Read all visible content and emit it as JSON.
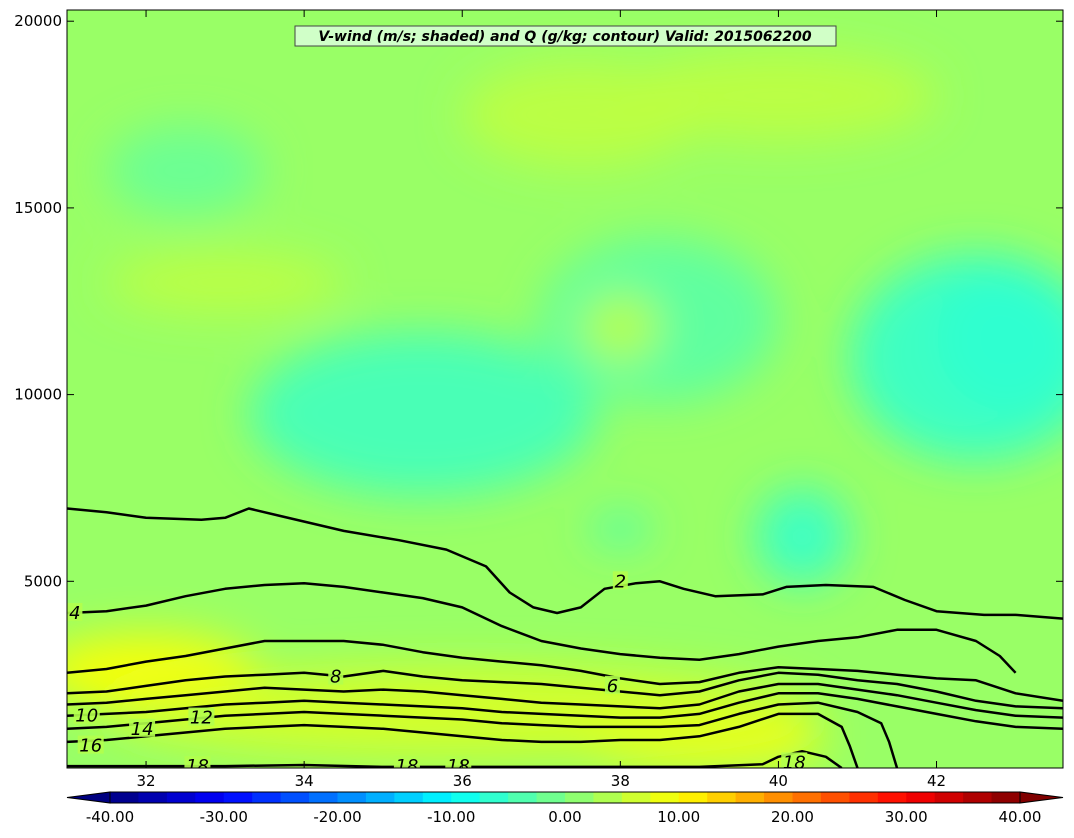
{
  "chart_data": {
    "type": "contour",
    "title": "V-wind (m/s; shaded) and Q (g/kg; contour) Valid: 2015062200",
    "xlabel": "",
    "ylabel": "",
    "xlim": [
      31.0,
      43.6
    ],
    "ylim": [
      0,
      20300
    ],
    "x_ticks": [
      32,
      34,
      36,
      38,
      40,
      42
    ],
    "y_ticks": [
      5000,
      10000,
      15000,
      20000
    ],
    "shaded_variable": "V-wind (m/s)",
    "contour_variable": "Q (g/kg)",
    "colorbar": {
      "min": -40,
      "max": 40,
      "step": 2.5,
      "tick_values": [
        -40,
        -30,
        -20,
        -10,
        0,
        10,
        20,
        30,
        40
      ],
      "tick_labels": [
        "-40.00",
        "-30.00",
        "-20.00",
        "-10.00",
        "0.00",
        "10.00",
        "20.00",
        "30.00",
        "40.00"
      ],
      "colormap": "jet",
      "extend": "both"
    },
    "shaded_field_summary": {
      "background_value": 2,
      "anomalies": [
        {
          "x": 42.9,
          "y": 11500,
          "value": -10,
          "rx": 0.9,
          "ry": 1900
        },
        {
          "x": 42.5,
          "y": 11000,
          "value": -6,
          "rx": 1.6,
          "ry": 2800
        },
        {
          "x": 35.5,
          "y": 9500,
          "value": -5,
          "rx": 2.2,
          "ry": 2200
        },
        {
          "x": 40.3,
          "y": 6200,
          "value": -6,
          "rx": 0.6,
          "ry": 1300
        },
        {
          "x": 38.0,
          "y": 6400,
          "value": -5,
          "rx": 0.4,
          "ry": 400
        },
        {
          "x": 38.5,
          "y": 12000,
          "value": -3,
          "rx": 1.5,
          "ry": 2200
        },
        {
          "x": 32.5,
          "y": 16000,
          "value": -2,
          "rx": 1.0,
          "ry": 1200
        },
        {
          "x": 33.0,
          "y": 13000,
          "value": 5,
          "rx": 1.5,
          "ry": 800
        },
        {
          "x": 38.0,
          "y": 11800,
          "value": 5,
          "rx": 0.5,
          "ry": 900
        },
        {
          "x": 37.5,
          "y": 17500,
          "value": 5,
          "rx": 1.5,
          "ry": 1400
        },
        {
          "x": 40.0,
          "y": 18000,
          "value": 5,
          "rx": 2.0,
          "ry": 1200
        },
        {
          "x": 32.0,
          "y": 2600,
          "value": 10,
          "rx": 1.4,
          "ry": 1000
        },
        {
          "x": 39.0,
          "y": 700,
          "value": 10,
          "rx": 1.6,
          "ry": 700
        },
        {
          "x": 36.0,
          "y": 1500,
          "value": 7,
          "rx": 4.5,
          "ry": 1200
        }
      ]
    },
    "contours": [
      {
        "level": 2,
        "label": "2",
        "points": [
          [
            31.0,
            6950
          ],
          [
            31.5,
            6850
          ],
          [
            32.0,
            6700
          ],
          [
            32.7,
            6650
          ],
          [
            33.0,
            6700
          ],
          [
            33.3,
            6950
          ],
          [
            33.7,
            6750
          ],
          [
            34.5,
            6350
          ],
          [
            35.2,
            6100
          ],
          [
            35.8,
            5850
          ],
          [
            36.3,
            5400
          ],
          [
            36.6,
            4700
          ],
          [
            36.9,
            4300
          ],
          [
            37.2,
            4150
          ],
          [
            37.5,
            4300
          ],
          [
            37.8,
            4800
          ],
          [
            38.2,
            4950
          ],
          [
            38.5,
            5000
          ],
          [
            38.8,
            4800
          ],
          [
            39.2,
            4600
          ],
          [
            39.8,
            4650
          ],
          [
            40.1,
            4850
          ],
          [
            40.6,
            4900
          ],
          [
            41.2,
            4850
          ],
          [
            41.6,
            4500
          ],
          [
            42.0,
            4200
          ],
          [
            42.6,
            4100
          ],
          [
            43.0,
            4100
          ],
          [
            43.6,
            4000
          ]
        ]
      },
      {
        "level": 4,
        "label": "4",
        "points": [
          [
            31.0,
            4150
          ],
          [
            31.5,
            4200
          ],
          [
            32.0,
            4350
          ],
          [
            32.5,
            4600
          ],
          [
            33.0,
            4800
          ],
          [
            33.5,
            4900
          ],
          [
            34.0,
            4950
          ],
          [
            34.5,
            4850
          ],
          [
            35.0,
            4700
          ],
          [
            35.5,
            4550
          ],
          [
            36.0,
            4300
          ],
          [
            36.5,
            3800
          ],
          [
            37.0,
            3400
          ],
          [
            37.5,
            3200
          ],
          [
            38.0,
            3050
          ],
          [
            38.5,
            2950
          ],
          [
            39.0,
            2900
          ],
          [
            39.5,
            3050
          ],
          [
            40.0,
            3250
          ],
          [
            40.5,
            3400
          ],
          [
            41.0,
            3500
          ],
          [
            41.5,
            3700
          ],
          [
            42.0,
            3700
          ],
          [
            42.5,
            3400
          ],
          [
            42.8,
            3000
          ],
          [
            43.0,
            2550
          ]
        ]
      },
      {
        "level": 6,
        "label": "6",
        "points": [
          [
            31.0,
            2550
          ],
          [
            31.5,
            2650
          ],
          [
            32.0,
            2850
          ],
          [
            32.5,
            3000
          ],
          [
            33.0,
            3200
          ],
          [
            33.5,
            3400
          ],
          [
            34.0,
            3400
          ],
          [
            34.5,
            3400
          ],
          [
            35.0,
            3300
          ],
          [
            35.5,
            3100
          ],
          [
            36.0,
            2950
          ],
          [
            36.5,
            2850
          ],
          [
            37.0,
            2750
          ],
          [
            37.5,
            2600
          ],
          [
            38.0,
            2400
          ],
          [
            38.5,
            2250
          ],
          [
            39.0,
            2300
          ],
          [
            39.5,
            2550
          ],
          [
            40.0,
            2700
          ],
          [
            40.5,
            2650
          ],
          [
            41.0,
            2600
          ],
          [
            41.5,
            2500
          ],
          [
            42.0,
            2400
          ],
          [
            42.5,
            2350
          ],
          [
            43.0,
            2000
          ],
          [
            43.6,
            1800
          ]
        ]
      },
      {
        "level": 8,
        "label": "8",
        "points": [
          [
            31.0,
            2000
          ],
          [
            31.5,
            2050
          ],
          [
            32.0,
            2200
          ],
          [
            32.5,
            2350
          ],
          [
            33.0,
            2450
          ],
          [
            33.5,
            2500
          ],
          [
            34.0,
            2550
          ],
          [
            34.5,
            2450
          ],
          [
            35.0,
            2600
          ],
          [
            35.5,
            2450
          ],
          [
            36.0,
            2350
          ],
          [
            36.5,
            2300
          ],
          [
            37.0,
            2250
          ],
          [
            37.5,
            2150
          ],
          [
            38.0,
            2050
          ],
          [
            38.5,
            1950
          ],
          [
            39.0,
            2050
          ],
          [
            39.5,
            2350
          ],
          [
            40.0,
            2550
          ],
          [
            40.5,
            2500
          ],
          [
            41.0,
            2350
          ],
          [
            41.5,
            2250
          ],
          [
            42.0,
            2050
          ],
          [
            42.5,
            1800
          ],
          [
            43.0,
            1650
          ],
          [
            43.6,
            1600
          ]
        ]
      },
      {
        "level": 10,
        "label": "10",
        "points": [
          [
            31.0,
            1700
          ],
          [
            31.5,
            1750
          ],
          [
            32.0,
            1850
          ],
          [
            32.5,
            1950
          ],
          [
            33.0,
            2050
          ],
          [
            33.5,
            2150
          ],
          [
            34.0,
            2100
          ],
          [
            34.5,
            2050
          ],
          [
            35.0,
            2100
          ],
          [
            35.5,
            2050
          ],
          [
            36.0,
            1950
          ],
          [
            36.5,
            1850
          ],
          [
            37.0,
            1750
          ],
          [
            37.5,
            1700
          ],
          [
            38.0,
            1650
          ],
          [
            38.5,
            1600
          ],
          [
            39.0,
            1700
          ],
          [
            39.5,
            2050
          ],
          [
            40.0,
            2250
          ],
          [
            40.5,
            2250
          ],
          [
            41.0,
            2100
          ],
          [
            41.5,
            1950
          ],
          [
            42.0,
            1750
          ],
          [
            42.5,
            1550
          ],
          [
            43.0,
            1400
          ],
          [
            43.6,
            1350
          ]
        ]
      },
      {
        "level": 12,
        "label": "12",
        "points": [
          [
            31.0,
            1400
          ],
          [
            31.5,
            1450
          ],
          [
            32.0,
            1500
          ],
          [
            32.5,
            1600
          ],
          [
            33.0,
            1700
          ],
          [
            33.5,
            1750
          ],
          [
            34.0,
            1800
          ],
          [
            34.5,
            1750
          ],
          [
            35.0,
            1700
          ],
          [
            35.5,
            1650
          ],
          [
            36.0,
            1600
          ],
          [
            36.5,
            1500
          ],
          [
            37.0,
            1450
          ],
          [
            37.5,
            1400
          ],
          [
            38.0,
            1350
          ],
          [
            38.5,
            1350
          ],
          [
            39.0,
            1450
          ],
          [
            39.5,
            1750
          ],
          [
            40.0,
            2000
          ],
          [
            40.5,
            2000
          ],
          [
            41.0,
            1850
          ],
          [
            41.5,
            1650
          ],
          [
            42.0,
            1450
          ],
          [
            42.5,
            1250
          ],
          [
            43.0,
            1100
          ],
          [
            43.6,
            1050
          ]
        ]
      },
      {
        "level": 14,
        "label": "14",
        "points": [
          [
            31.0,
            1050
          ],
          [
            31.5,
            1100
          ],
          [
            32.0,
            1200
          ],
          [
            32.5,
            1300
          ],
          [
            33.0,
            1400
          ],
          [
            33.5,
            1450
          ],
          [
            34.0,
            1500
          ],
          [
            34.5,
            1450
          ],
          [
            35.0,
            1400
          ],
          [
            35.5,
            1350
          ],
          [
            36.0,
            1300
          ],
          [
            36.5,
            1200
          ],
          [
            37.0,
            1150
          ],
          [
            37.5,
            1100
          ],
          [
            38.0,
            1100
          ],
          [
            38.5,
            1100
          ],
          [
            39.0,
            1150
          ],
          [
            39.5,
            1450
          ],
          [
            40.0,
            1700
          ],
          [
            40.5,
            1750
          ],
          [
            41.0,
            1500
          ],
          [
            41.3,
            1200
          ],
          [
            41.4,
            700
          ],
          [
            41.5,
            0
          ]
        ]
      },
      {
        "level": 16,
        "label": "16",
        "points": [
          [
            31.0,
            700
          ],
          [
            31.5,
            750
          ],
          [
            32.0,
            850
          ],
          [
            32.5,
            950
          ],
          [
            33.0,
            1050
          ],
          [
            33.5,
            1100
          ],
          [
            34.0,
            1150
          ],
          [
            34.5,
            1100
          ],
          [
            35.0,
            1050
          ],
          [
            35.5,
            950
          ],
          [
            36.0,
            850
          ],
          [
            36.5,
            750
          ],
          [
            37.0,
            700
          ],
          [
            37.5,
            700
          ],
          [
            38.0,
            750
          ],
          [
            38.5,
            750
          ],
          [
            39.0,
            850
          ],
          [
            39.5,
            1100
          ],
          [
            40.0,
            1450
          ],
          [
            40.5,
            1450
          ],
          [
            40.8,
            1100
          ],
          [
            40.9,
            600
          ],
          [
            41.0,
            0
          ]
        ]
      },
      {
        "level": 18,
        "label": "18",
        "points": [
          [
            31.0,
            50
          ],
          [
            32.0,
            50
          ],
          [
            33.0,
            50
          ],
          [
            34.0,
            80
          ],
          [
            35.0,
            30
          ],
          [
            36.0,
            30
          ],
          [
            37.0,
            30
          ],
          [
            38.0,
            30
          ],
          [
            39.0,
            30
          ],
          [
            39.8,
            100
          ],
          [
            40.0,
            300
          ],
          [
            40.3,
            450
          ],
          [
            40.6,
            300
          ],
          [
            40.8,
            0
          ]
        ]
      }
    ],
    "contour_label_positions": [
      {
        "label": "2",
        "x": 38.0,
        "y": 5000
      },
      {
        "label": "4",
        "x": 31.1,
        "y": 4150
      },
      {
        "label": "6",
        "x": 37.9,
        "y": 2200
      },
      {
        "label": "8",
        "x": 34.4,
        "y": 2450
      },
      {
        "label": "10",
        "x": 31.25,
        "y": 1400
      },
      {
        "label": "12",
        "x": 32.7,
        "y": 1350
      },
      {
        "label": "14",
        "x": 31.95,
        "y": 1050
      },
      {
        "label": "16",
        "x": 31.3,
        "y": 600
      },
      {
        "label": "18",
        "x": 32.65,
        "y": 50
      },
      {
        "label": "18",
        "x": 35.3,
        "y": 50
      },
      {
        "label": "18",
        "x": 35.95,
        "y": 50
      },
      {
        "label": "18",
        "x": 40.2,
        "y": 150
      }
    ]
  }
}
